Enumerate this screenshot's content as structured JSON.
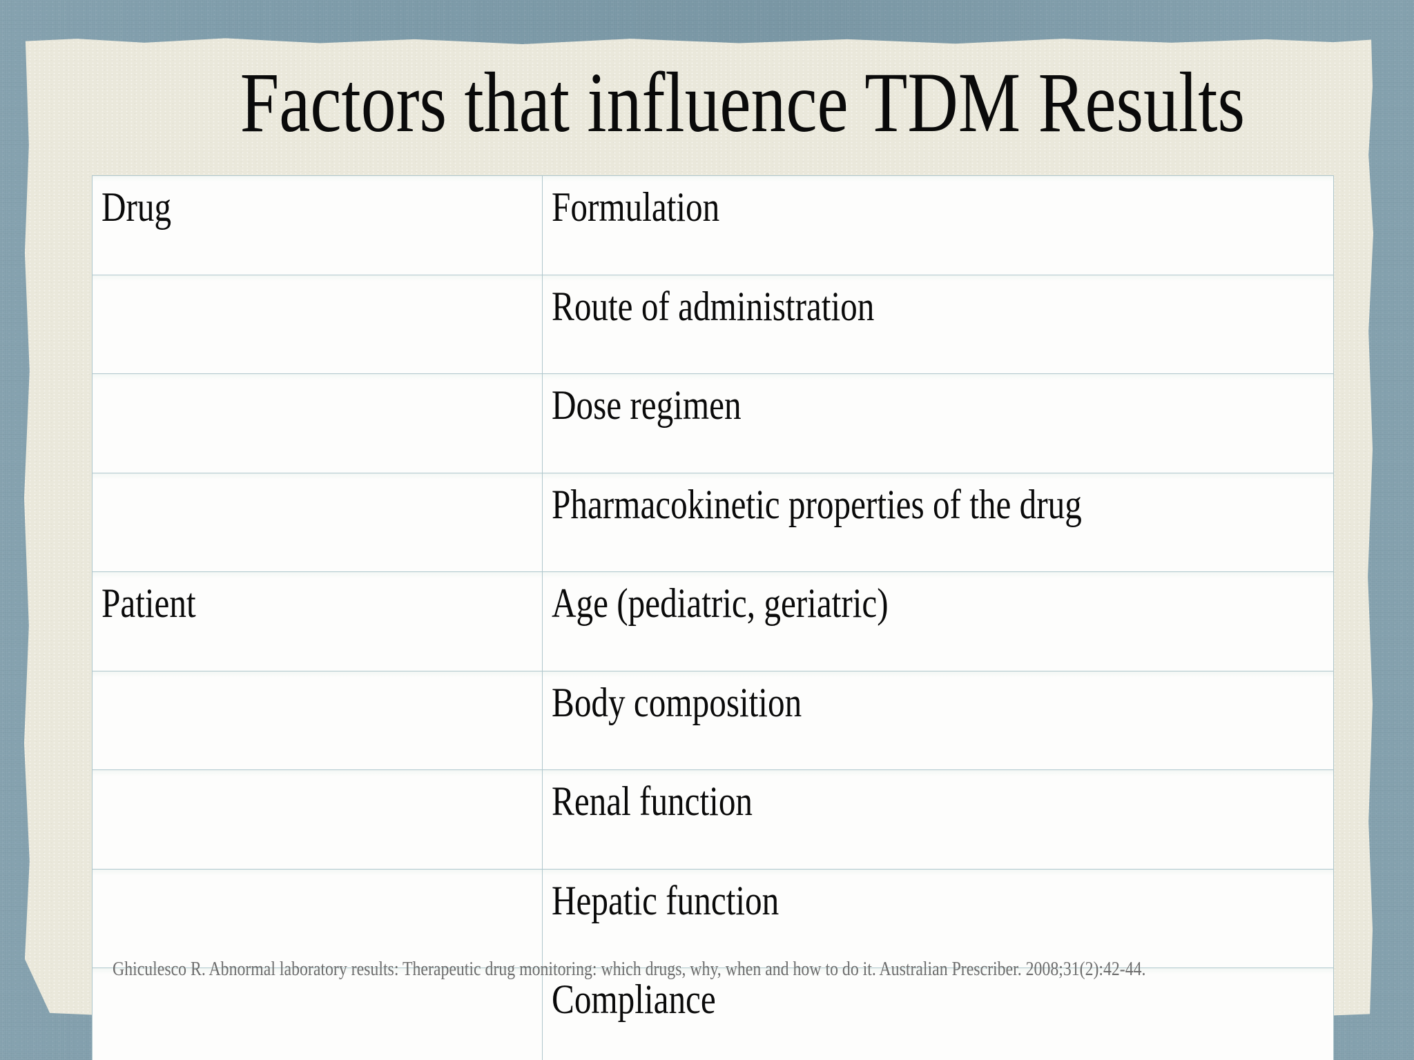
{
  "slide": {
    "title": "Factors that influence TDM Results",
    "table": {
      "columns": [
        "category",
        "factor"
      ],
      "rows": [
        {
          "category": "Drug",
          "factor": "Formulation"
        },
        {
          "category": "",
          "factor": "Route of administration"
        },
        {
          "category": "",
          "factor": "Dose regimen"
        },
        {
          "category": "",
          "factor": "Pharmacokinetic properties of the drug"
        },
        {
          "category": "Patient",
          "factor": "Age (pediatric, geriatric)"
        },
        {
          "category": "",
          "factor": "Body composition"
        },
        {
          "category": "",
          "factor": "Renal function"
        },
        {
          "category": "",
          "factor": "Hepatic function"
        },
        {
          "category": "",
          "factor": "Compliance"
        }
      ]
    },
    "citation": "Ghiculesco R. Abnormal laboratory results: Therapeutic drug monitoring: which drugs, why, when and how to do it. Australian Prescriber. 2008;31(2):42-44.",
    "colors": {
      "frame_background": "#7f9dab",
      "paper": "#eae8db",
      "cell_fill": "#fdfdfc",
      "table_border": "#aec6cc",
      "text": "#0a0a0a",
      "citation_text": "#6d6d6d"
    }
  }
}
